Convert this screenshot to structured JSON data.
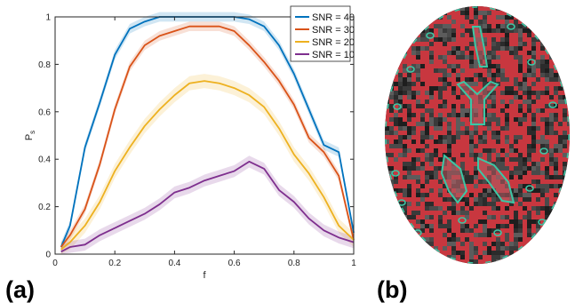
{
  "chart_data": {
    "type": "line",
    "xlabel": "f",
    "ylabel": "P",
    "ylabel_subscript": "s",
    "xlim": [
      0,
      1
    ],
    "ylim": [
      0,
      1
    ],
    "xticks": [
      0,
      0.2,
      0.4,
      0.6,
      0.8,
      1
    ],
    "xtick_labels": [
      "0",
      "0.2",
      "0.4",
      "0.6",
      "0.8",
      "1"
    ],
    "yticks": [
      0,
      0.2,
      0.4,
      0.6,
      0.8,
      1
    ],
    "ytick_labels": [
      "0",
      "0.2",
      "0.4",
      "0.6",
      "0.8",
      "1"
    ],
    "grid": false,
    "legend_position": "top-right",
    "x": [
      0.02,
      0.05,
      0.1,
      0.15,
      0.2,
      0.25,
      0.3,
      0.35,
      0.4,
      0.45,
      0.5,
      0.55,
      0.6,
      0.65,
      0.7,
      0.75,
      0.8,
      0.85,
      0.9,
      0.95,
      1.0
    ],
    "series": [
      {
        "name": "SNR = 40",
        "color": "#0072BD",
        "values": [
          0.03,
          0.12,
          0.45,
          0.64,
          0.84,
          0.95,
          0.98,
          1.0,
          1.0,
          1.0,
          1.0,
          1.0,
          1.0,
          0.99,
          0.96,
          0.88,
          0.76,
          0.61,
          0.46,
          0.43,
          0.09
        ],
        "band": 0.02
      },
      {
        "name": "SNR = 30",
        "color": "#D95319",
        "values": [
          0.03,
          0.08,
          0.19,
          0.38,
          0.61,
          0.79,
          0.88,
          0.92,
          0.94,
          0.96,
          0.96,
          0.96,
          0.94,
          0.88,
          0.81,
          0.73,
          0.63,
          0.49,
          0.43,
          0.33,
          0.06
        ],
        "band": 0.02
      },
      {
        "name": "SNR = 20",
        "color": "#EDB120",
        "values": [
          0.02,
          0.05,
          0.12,
          0.22,
          0.35,
          0.45,
          0.54,
          0.61,
          0.67,
          0.72,
          0.73,
          0.72,
          0.7,
          0.67,
          0.62,
          0.53,
          0.42,
          0.34,
          0.24,
          0.12,
          0.06
        ],
        "band": 0.03
      },
      {
        "name": "SNR = 10",
        "color": "#7E2F8E",
        "values": [
          0.01,
          0.03,
          0.04,
          0.08,
          0.11,
          0.14,
          0.17,
          0.21,
          0.26,
          0.28,
          0.31,
          0.33,
          0.35,
          0.39,
          0.36,
          0.27,
          0.22,
          0.15,
          0.1,
          0.07,
          0.05
        ],
        "band": 0.025
      }
    ]
  },
  "panels": {
    "a": "(a)",
    "b": "(b)"
  },
  "brain_image": {
    "colors": {
      "tissue_red": "#c8373f",
      "tissue_dark": "#2a2a2a",
      "outline": "#3cc7a5"
    }
  }
}
